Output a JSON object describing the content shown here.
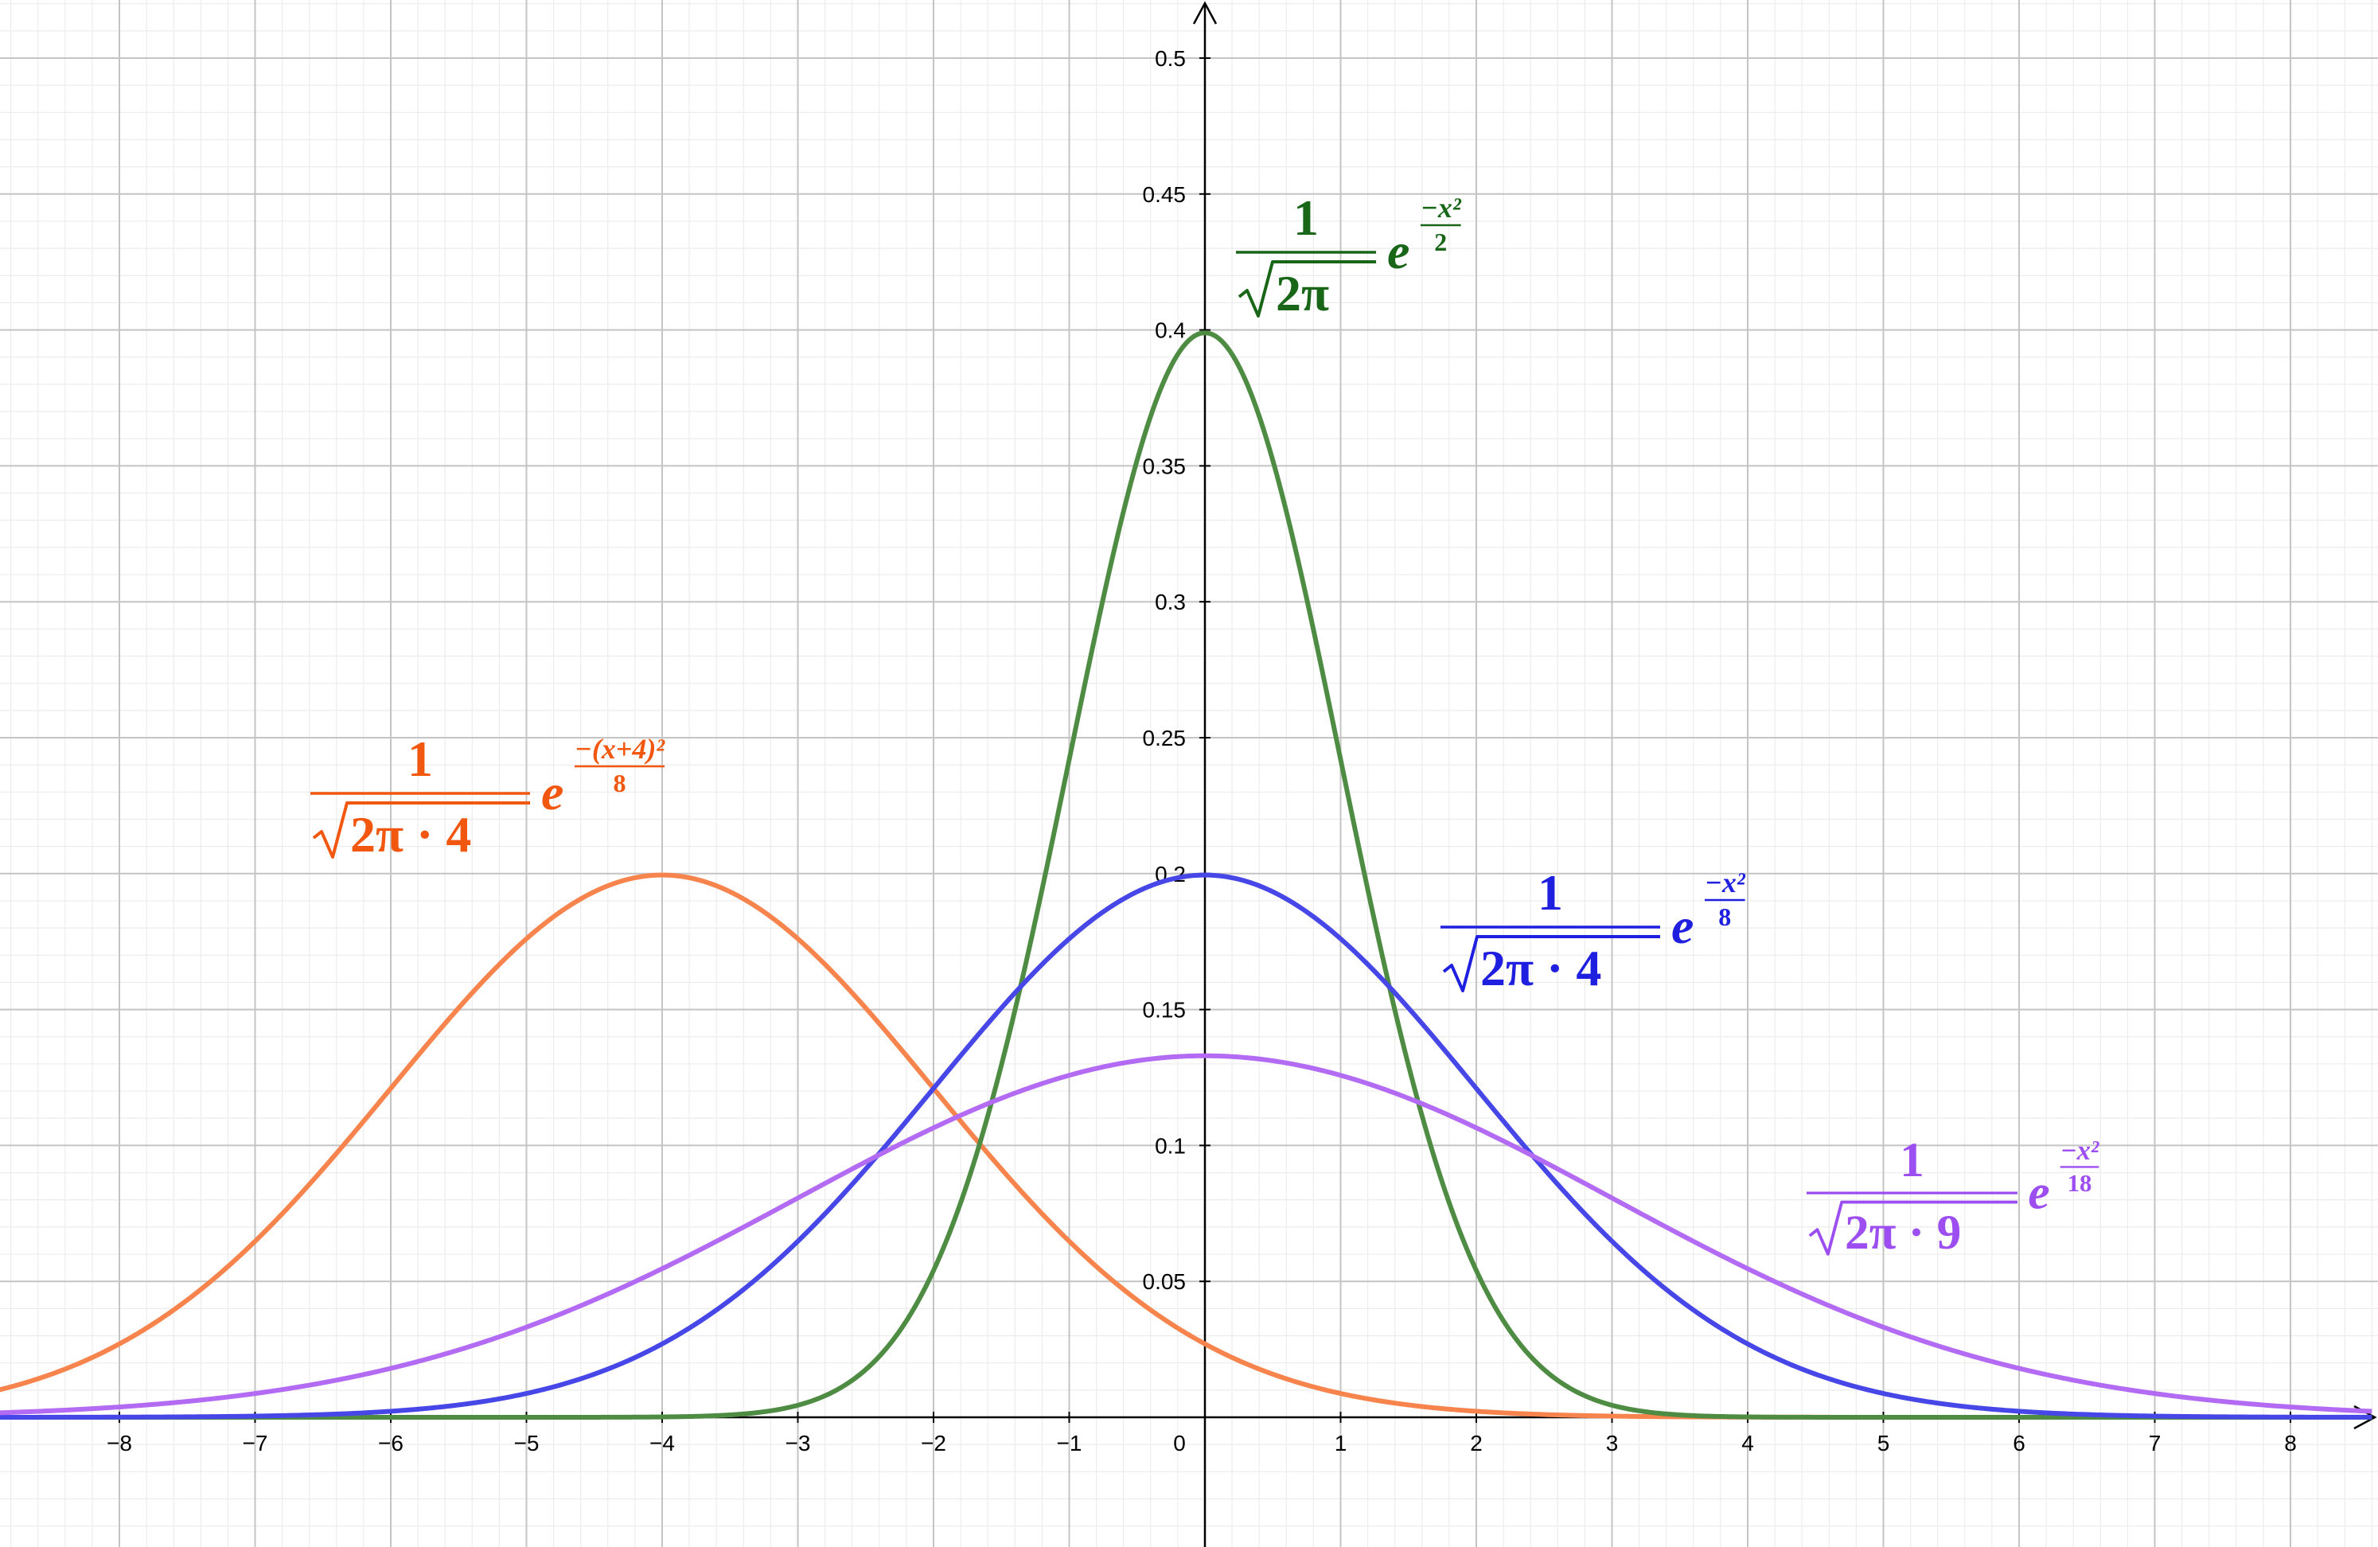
{
  "chart_data": {
    "type": "line",
    "title": "",
    "xlabel": "",
    "ylabel": "",
    "xlim": [
      -8.9,
      8.6
    ],
    "ylim": [
      -0.048,
      0.52
    ],
    "grid": true,
    "x_ticks": [
      "−8",
      "−7",
      "−6",
      "−5",
      "−4",
      "−3",
      "−2",
      "−1",
      "0",
      "1",
      "2",
      "3",
      "4",
      "5",
      "6",
      "7",
      "8"
    ],
    "y_ticks": [
      "0.05",
      "0.1",
      "0.15",
      "0.2",
      "0.25",
      "0.3",
      "0.35",
      "0.4",
      "0.45",
      "0.5"
    ],
    "series": [
      {
        "key": "orange",
        "function": "normal_pdf",
        "mean": -4,
        "variance": 4,
        "color": "#f7834d"
      },
      {
        "key": "green",
        "function": "normal_pdf",
        "mean": 0,
        "variance": 1,
        "color": "#4f8c43"
      },
      {
        "key": "blue",
        "function": "normal_pdf",
        "mean": 0,
        "variance": 4,
        "color": "#4747e8"
      },
      {
        "key": "purple",
        "function": "normal_pdf",
        "mean": 0,
        "variance": 9,
        "color": "#b26bf2"
      }
    ],
    "annotations": {
      "orange": {
        "numerator": "1",
        "radicand": "2π · 4",
        "base": "e",
        "exp_numerator": "−(x+4)²",
        "exp_denominator": "8",
        "color": "#f2570f"
      },
      "green": {
        "numerator": "1",
        "radicand": "2π",
        "base": "e",
        "exp_numerator": "−x²",
        "exp_denominator": "2",
        "color": "#196619"
      },
      "blue": {
        "numerator": "1",
        "radicand": "2π · 4",
        "base": "e",
        "exp_numerator": "−x²",
        "exp_denominator": "8",
        "color": "#1f1fe0"
      },
      "purple": {
        "numerator": "1",
        "radicand": "2π · 9",
        "base": "e",
        "exp_numerator": "−x²",
        "exp_denominator": "18",
        "color": "#9d4ef0"
      }
    }
  }
}
